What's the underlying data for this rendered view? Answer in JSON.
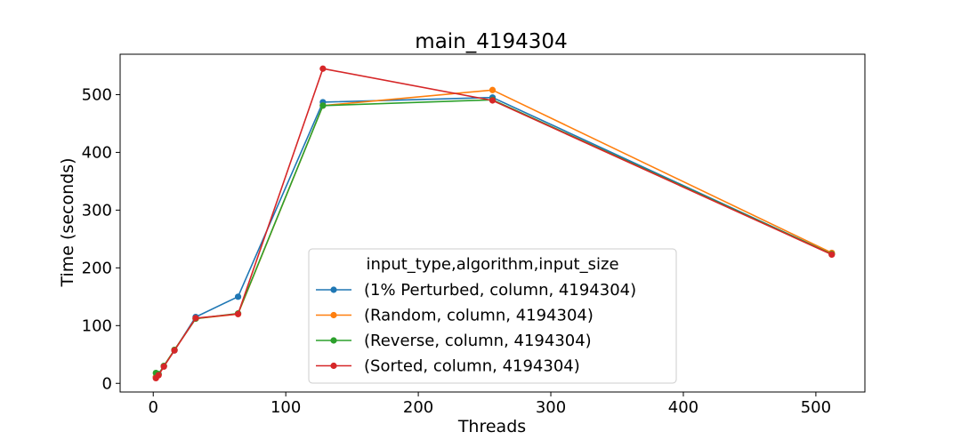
{
  "chart_data": {
    "type": "line",
    "title": "main_4194304",
    "xlabel": "Threads",
    "ylabel": "Time (seconds)",
    "xlim": [
      -25,
      537
    ],
    "ylim": [
      -15,
      570
    ],
    "xticks": [
      0,
      100,
      200,
      300,
      400,
      500
    ],
    "yticks": [
      0,
      100,
      200,
      300,
      400,
      500
    ],
    "grid": false,
    "legend": {
      "title": "input_type,algorithm,input_size",
      "placement": "lower-center"
    },
    "series": [
      {
        "name": "(1% Perturbed, column, 4194304)",
        "color": "#1f77b4",
        "x": [
          2,
          4,
          8,
          16,
          32,
          64,
          128,
          256,
          512
        ],
        "y": [
          11,
          16,
          30,
          57,
          115,
          150,
          487,
          495,
          224
        ]
      },
      {
        "name": "(Random, column, 4194304)",
        "color": "#ff7f0e",
        "x": [
          2,
          4,
          8,
          16,
          32,
          64,
          128,
          256,
          512
        ],
        "y": [
          11,
          15,
          30,
          58,
          112,
          120,
          481,
          508,
          226
        ]
      },
      {
        "name": "(Reverse, column, 4194304)",
        "color": "#2ca02c",
        "x": [
          2,
          4,
          8,
          16,
          32,
          64,
          128,
          256,
          512
        ],
        "y": [
          18,
          16,
          30,
          58,
          112,
          121,
          481,
          491,
          224
        ]
      },
      {
        "name": "(Sorted, column, 4194304)",
        "color": "#d62728",
        "x": [
          2,
          4,
          8,
          16,
          32,
          64,
          128,
          256,
          512
        ],
        "y": [
          9,
          14,
          29,
          57,
          113,
          120,
          545,
          490,
          223
        ]
      }
    ]
  }
}
